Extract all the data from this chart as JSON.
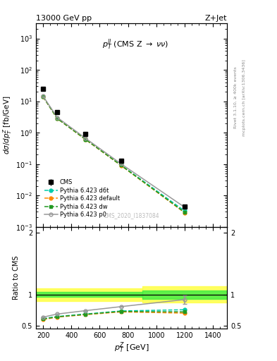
{
  "title_left": "13000 GeV pp",
  "title_right": "Z+Jet",
  "annotation": "$p_T^{ll}$ (CMS Z $\\rightarrow$ $\\nu\\nu$)",
  "watermark": "CMS_2020_I1837084",
  "right_label_top": "Rivet 3.1.10, ≥ 400k events",
  "right_label_bottom": "mcplots.cern.ch [arXiv:1306.3436]",
  "cms_x": [
    200,
    300,
    500,
    750,
    1200
  ],
  "cms_y": [
    25,
    4.5,
    0.9,
    0.13,
    0.0045
  ],
  "cms_yerr_lo": [
    3,
    0.5,
    0.09,
    0.015,
    0.0006
  ],
  "cms_yerr_hi": [
    3,
    0.5,
    0.09,
    0.015,
    0.0006
  ],
  "d6t_x": [
    200,
    300,
    500,
    750,
    1200
  ],
  "d6t_y": [
    14.0,
    2.85,
    0.61,
    0.093,
    0.0032
  ],
  "default_x": [
    200,
    300,
    500,
    750,
    1200
  ],
  "default_y": [
    13.8,
    2.8,
    0.6,
    0.09,
    0.0028
  ],
  "dw_x": [
    200,
    300,
    500,
    750,
    1200
  ],
  "dw_y": [
    13.9,
    2.82,
    0.61,
    0.091,
    0.0029
  ],
  "p0_x": [
    200,
    300,
    500,
    750,
    1200
  ],
  "p0_y": [
    14.5,
    3.05,
    0.66,
    0.102,
    0.0042
  ],
  "ratio_x": [
    200,
    300,
    500,
    750,
    1200
  ],
  "ratio_d6t": [
    0.61,
    0.645,
    0.685,
    0.735,
    0.755
  ],
  "ratio_default": [
    0.595,
    0.635,
    0.675,
    0.72,
    0.7
  ],
  "ratio_dw": [
    0.605,
    0.64,
    0.68,
    0.728,
    0.72
  ],
  "ratio_p0": [
    0.635,
    0.685,
    0.74,
    0.805,
    0.92
  ],
  "ratio_p0_yerr": [
    0.0,
    0.0,
    0.0,
    0.0,
    0.07
  ],
  "color_d6t": "#00ccaa",
  "color_default": "#ff8800",
  "color_dw": "#229922",
  "color_p0": "#999999",
  "xlim": [
    150,
    1500
  ],
  "ylim_main": [
    0.001,
    3000.0
  ],
  "ylim_ratio": [
    0.45,
    2.1
  ]
}
